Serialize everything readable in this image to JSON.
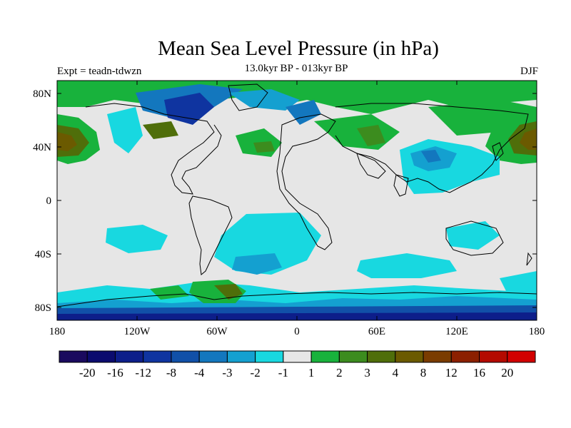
{
  "title": "Mean Sea Level Pressure (in hPa)",
  "subtitle": "13.0kyr BP - 013kyr BP",
  "left_label": "Expt = teadn-tdwzn",
  "right_label": "DJF",
  "lat_ticks": [
    "80N",
    "40N",
    "0",
    "40S",
    "80S"
  ],
  "lon_ticks": [
    "180",
    "120W",
    "60W",
    "0",
    "60E",
    "120E",
    "180"
  ],
  "colorbar": {
    "colors": [
      "#1a0a5e",
      "#0b0b6e",
      "#0d1e8a",
      "#0f34a0",
      "#1150a8",
      "#1377be",
      "#14a0d0",
      "#18d8e0",
      "#e6e6e6",
      "#18b23c",
      "#3c8c1e",
      "#4f6e0a",
      "#6b5a00",
      "#7a3c00",
      "#8c2000",
      "#b40a00",
      "#d20000"
    ],
    "labels": [
      "-20",
      "-16",
      "-12",
      "-8",
      "-4",
      "-3",
      "-2",
      "-1",
      "1",
      "2",
      "3",
      "4",
      "8",
      "12",
      "16",
      "20"
    ]
  }
}
